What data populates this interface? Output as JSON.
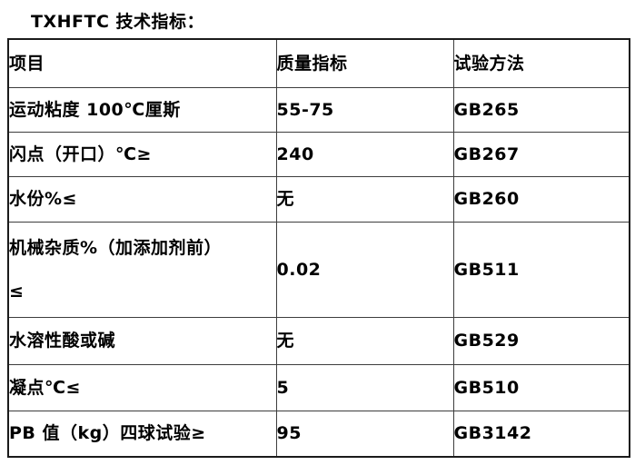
{
  "page": {
    "title": "TXHFTC 技术指标："
  },
  "table": {
    "headers": [
      "项目",
      "质量指标",
      "试验方法"
    ],
    "rows": [
      {
        "item": "运动粘度 100℃厘斯",
        "value": "55-75",
        "method": "GB265"
      },
      {
        "item": "闪点（开口）℃≥",
        "value": "240",
        "method": "GB267"
      },
      {
        "item": "水份%≤",
        "value": "无",
        "method": "GB260"
      },
      {
        "item": "机械杂质%（加添加剂前）\n≤",
        "value": "0.02",
        "method": "GB511"
      },
      {
        "item": "水溶性酸或碱",
        "value": "无",
        "method": "GB529"
      },
      {
        "item": "凝点℃≤",
        "value": "5",
        "method": "GB510"
      },
      {
        "item": "PB 值（kg）四球试验≥",
        "value": "95",
        "method": "GB3142"
      }
    ]
  }
}
